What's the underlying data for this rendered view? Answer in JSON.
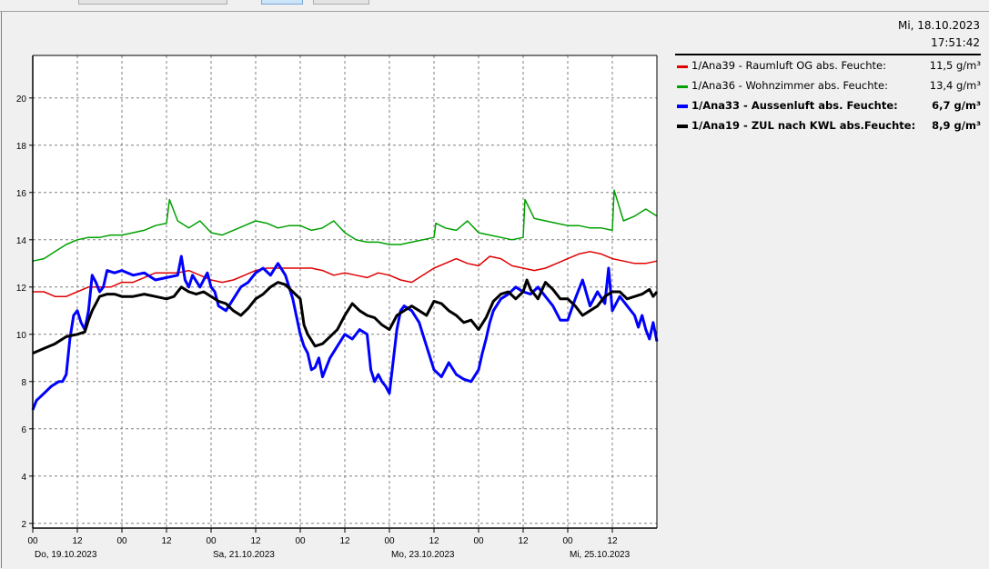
{
  "header": {
    "date": "Mi, 18.10.2023",
    "time": "17:51:42"
  },
  "legend": [
    {
      "label": "1/Ana39 - Raumluft OG abs. Feuchte:",
      "value": "11,5 g/m³",
      "color": "#e00000",
      "bold": false
    },
    {
      "label": "1/Ana36 - Wohnzimmer abs. Feuchte:",
      "value": "13,4 g/m³",
      "color": "#00a000",
      "bold": false
    },
    {
      "label": "1/Ana33 - Aussenluft abs. Feuchte:",
      "value": "6,7 g/m³",
      "color": "#0000ff",
      "bold": true
    },
    {
      "label": "1/Ana19 - ZUL nach KWL abs.Feuchte:",
      "value": "8,9 g/m³",
      "color": "#000000",
      "bold": true
    }
  ],
  "chart_data": {
    "type": "line",
    "x_unit": "hours from Do, 19.10.2023 00:00",
    "xlim": [
      0,
      168
    ],
    "ylim": [
      1.8,
      21.8
    ],
    "y_ticks": [
      "2",
      "4",
      "6",
      "8",
      "10",
      "12",
      "14",
      "16",
      "18",
      "20"
    ],
    "x_ticks": [
      "00",
      "12",
      "00",
      "12",
      "00",
      "12",
      "00",
      "12",
      "00",
      "12",
      "00",
      "12",
      "00",
      "12"
    ],
    "x_date_labels": [
      {
        "at": 0,
        "label": "Do, 19.10.2023"
      },
      {
        "at": 48,
        "label": "Sa, 21.10.2023"
      },
      {
        "at": 96,
        "label": "Mo, 23.10.2023"
      },
      {
        "at": 144,
        "label": "Mi, 25.10.2023"
      }
    ],
    "grid": true,
    "series": [
      {
        "name": "1/Ana39 - Raumluft OG abs. Feuchte",
        "color": "#e00000",
        "width": 1.5,
        "x": [
          0,
          3,
          6,
          9,
          12,
          15,
          18,
          21,
          24,
          27,
          30,
          33,
          36,
          39,
          42,
          45,
          48,
          51,
          54,
          57,
          60,
          63,
          66,
          69,
          72,
          75,
          78,
          81,
          84,
          87,
          90,
          93,
          96,
          99,
          102,
          105,
          108,
          111,
          114,
          117,
          120,
          123,
          126,
          129,
          132,
          135,
          138,
          141,
          144,
          147,
          150,
          153,
          156,
          159,
          162,
          165,
          168
        ],
        "y": [
          11.8,
          11.8,
          11.6,
          11.6,
          11.8,
          12.0,
          12.0,
          12.0,
          12.2,
          12.2,
          12.4,
          12.6,
          12.6,
          12.6,
          12.7,
          12.5,
          12.3,
          12.2,
          12.3,
          12.5,
          12.7,
          12.8,
          12.8,
          12.8,
          12.8,
          12.8,
          12.7,
          12.5,
          12.6,
          12.5,
          12.4,
          12.6,
          12.5,
          12.3,
          12.2,
          12.5,
          12.8,
          13.0,
          13.2,
          13.0,
          12.9,
          13.3,
          13.2,
          12.9,
          12.8,
          12.7,
          12.8,
          13.0,
          13.2,
          13.4,
          13.5,
          13.4,
          13.2,
          13.1,
          13.0,
          13.0,
          13.1
        ]
      },
      {
        "name": "1/Ana36 - Wohnzimmer abs. Feuchte",
        "color": "#00a000",
        "width": 1.5,
        "x": [
          0,
          3,
          6,
          9,
          12,
          15,
          18,
          21,
          24,
          27,
          30,
          33,
          36,
          36.8,
          39,
          42,
          45,
          48,
          51,
          54,
          57,
          60,
          63,
          66,
          69,
          72,
          75,
          78,
          81,
          84,
          87,
          90,
          93,
          96,
          99,
          102,
          105,
          108,
          108.5,
          111,
          114,
          117,
          120,
          123,
          126,
          129,
          132,
          132.5,
          135,
          138,
          141,
          144,
          147,
          150,
          153,
          156,
          156.5,
          159,
          162,
          165,
          168
        ],
        "y": [
          13.1,
          13.2,
          13.5,
          13.8,
          14.0,
          14.1,
          14.1,
          14.2,
          14.2,
          14.3,
          14.4,
          14.6,
          14.7,
          15.7,
          14.8,
          14.5,
          14.8,
          14.3,
          14.2,
          14.4,
          14.6,
          14.8,
          14.7,
          14.5,
          14.6,
          14.6,
          14.4,
          14.5,
          14.8,
          14.3,
          14.0,
          13.9,
          13.9,
          13.8,
          13.8,
          13.9,
          14.0,
          14.1,
          14.7,
          14.5,
          14.4,
          14.8,
          14.3,
          14.2,
          14.1,
          14.0,
          14.1,
          15.7,
          14.9,
          14.8,
          14.7,
          14.6,
          14.6,
          14.5,
          14.5,
          14.4,
          16.1,
          14.8,
          15.0,
          15.3,
          15.0
        ]
      },
      {
        "name": "1/Ana33 - Aussenluft abs. Feuchte",
        "color": "#0000ff",
        "width": 3,
        "x": [
          0,
          1,
          3,
          5,
          7,
          8,
          9,
          10,
          11,
          12,
          13,
          14,
          15,
          16,
          17,
          18,
          19,
          20,
          22,
          24,
          27,
          30,
          33,
          36,
          39,
          40,
          41,
          42,
          43,
          45,
          47,
          48,
          49,
          50,
          52,
          54,
          56,
          58,
          60,
          62,
          64,
          66,
          68,
          70,
          72,
          73,
          74,
          75,
          76,
          77,
          78,
          80,
          82,
          84,
          86,
          88,
          90,
          91,
          92,
          93,
          94,
          95,
          96,
          98,
          99,
          100,
          102,
          104,
          106,
          108,
          110,
          112,
          114,
          116,
          118,
          120,
          121,
          122,
          123,
          124,
          126,
          128,
          130,
          132,
          134,
          136,
          138,
          140,
          142,
          144,
          146,
          148,
          150,
          152,
          154,
          155,
          156,
          158,
          160,
          162,
          163,
          164,
          165,
          166,
          167,
          168
        ],
        "y": [
          6.8,
          7.2,
          7.5,
          7.8,
          8.0,
          8.0,
          8.3,
          9.8,
          10.8,
          11.0,
          10.5,
          10.2,
          11.0,
          12.5,
          12.2,
          11.8,
          12.0,
          12.7,
          12.6,
          12.7,
          12.5,
          12.6,
          12.3,
          12.4,
          12.5,
          13.3,
          12.3,
          12.0,
          12.5,
          12.0,
          12.6,
          12.0,
          11.8,
          11.2,
          11.0,
          11.5,
          12.0,
          12.2,
          12.6,
          12.8,
          12.5,
          13.0,
          12.5,
          11.5,
          10.0,
          9.5,
          9.2,
          8.5,
          8.6,
          9.0,
          8.2,
          9.0,
          9.5,
          10.0,
          9.8,
          10.2,
          10.0,
          8.5,
          8.0,
          8.3,
          8.0,
          7.8,
          7.5,
          10.2,
          11.0,
          11.2,
          11.0,
          10.5,
          9.5,
          8.5,
          8.2,
          8.8,
          8.3,
          8.1,
          8.0,
          8.5,
          9.2,
          9.8,
          10.5,
          11.0,
          11.5,
          11.7,
          12.0,
          11.8,
          11.7,
          12.0,
          11.6,
          11.2,
          10.6,
          10.6,
          11.5,
          12.3,
          11.2,
          11.8,
          11.3,
          12.8,
          11.0,
          11.6,
          11.2,
          10.8,
          10.3,
          10.8,
          10.2,
          9.8,
          10.5,
          9.7
        ]
      },
      {
        "name": "1/Ana19 - ZUL nach KWL abs.Feuchte",
        "color": "#000000",
        "width": 3,
        "x": [
          0,
          3,
          6,
          9,
          12,
          14,
          15,
          16,
          18,
          20,
          22,
          24,
          27,
          30,
          33,
          36,
          38,
          40,
          42,
          44,
          46,
          48,
          50,
          52,
          54,
          56,
          58,
          60,
          62,
          64,
          66,
          68,
          70,
          72,
          73,
          74,
          76,
          78,
          80,
          82,
          84,
          86,
          88,
          90,
          92,
          94,
          96,
          98,
          100,
          102,
          104,
          106,
          108,
          110,
          112,
          114,
          116,
          118,
          120,
          122,
          124,
          126,
          128,
          130,
          132,
          133,
          134,
          136,
          138,
          140,
          142,
          144,
          146,
          148,
          150,
          152,
          154,
          156,
          158,
          160,
          162,
          164,
          166,
          167,
          168
        ],
        "y": [
          9.2,
          9.4,
          9.6,
          9.9,
          10.0,
          10.1,
          10.6,
          11.0,
          11.6,
          11.7,
          11.7,
          11.6,
          11.6,
          11.7,
          11.6,
          11.5,
          11.6,
          12.0,
          11.8,
          11.7,
          11.8,
          11.6,
          11.4,
          11.3,
          11.0,
          10.8,
          11.1,
          11.5,
          11.7,
          12.0,
          12.2,
          12.1,
          11.8,
          11.5,
          10.4,
          10.0,
          9.5,
          9.6,
          9.9,
          10.2,
          10.8,
          11.3,
          11.0,
          10.8,
          10.7,
          10.4,
          10.2,
          10.8,
          11.0,
          11.2,
          11.0,
          10.8,
          11.4,
          11.3,
          11.0,
          10.8,
          10.5,
          10.6,
          10.2,
          10.7,
          11.4,
          11.7,
          11.8,
          11.5,
          11.8,
          12.3,
          11.9,
          11.5,
          12.2,
          11.9,
          11.5,
          11.5,
          11.2,
          10.8,
          11.0,
          11.2,
          11.6,
          11.8,
          11.8,
          11.5,
          11.6,
          11.7,
          11.9,
          11.6,
          11.8
        ]
      }
    ]
  }
}
